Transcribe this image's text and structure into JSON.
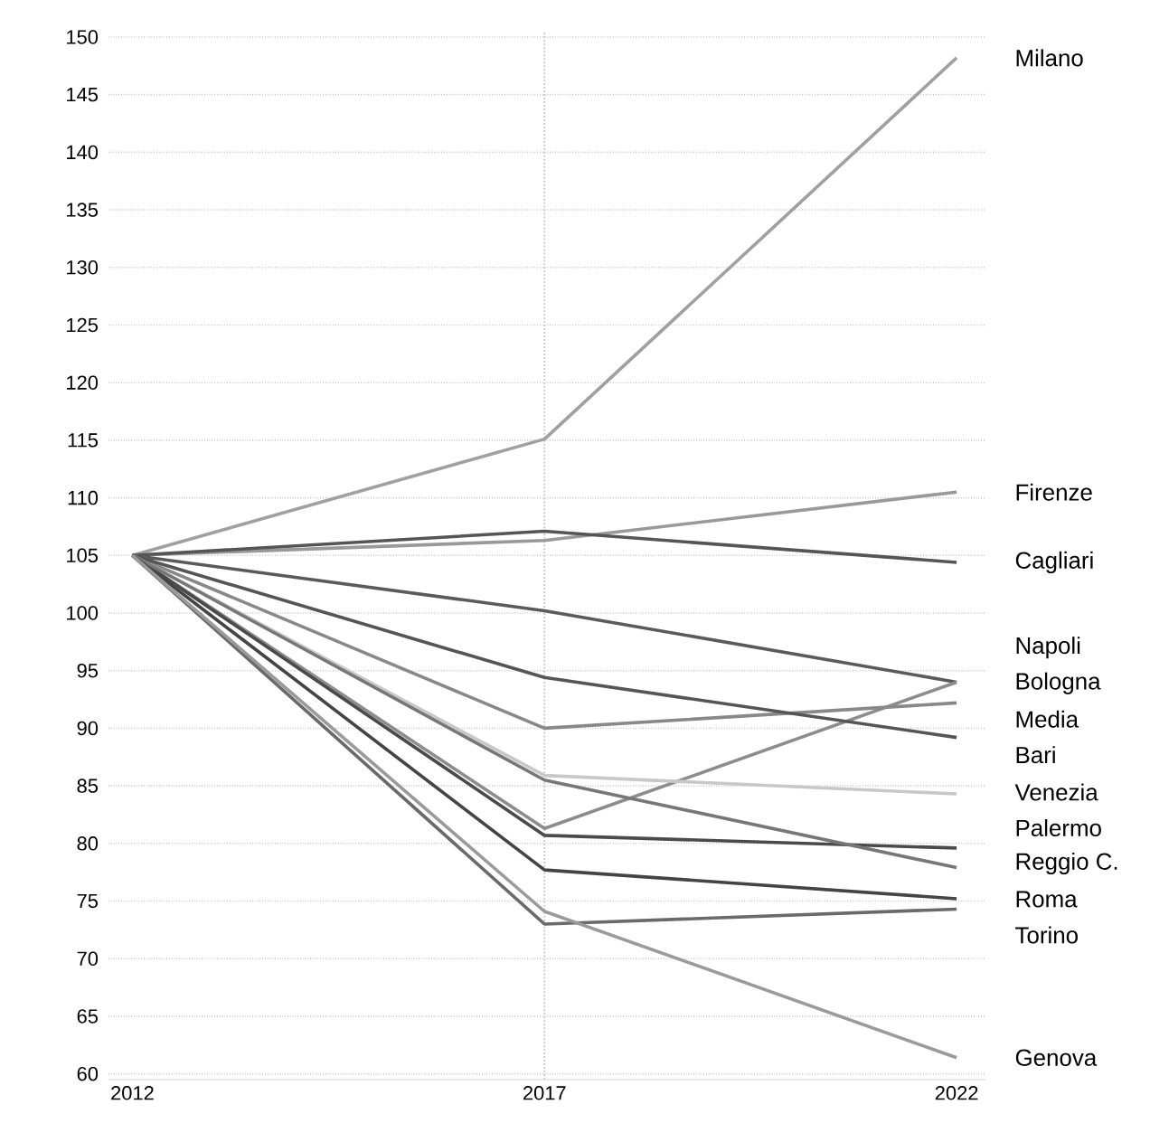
{
  "chart_data": {
    "type": "line",
    "x": [
      2012,
      2017,
      2022
    ],
    "xlim": [
      2011.71,
      2022.35
    ],
    "xticks": [
      2012,
      2017,
      2022
    ],
    "ylim": [
      59.5,
      150.5
    ],
    "yticks": [
      60,
      65,
      70,
      75,
      80,
      85,
      90,
      95,
      100,
      105,
      110,
      115,
      120,
      125,
      130,
      135,
      140,
      145,
      150
    ],
    "grid": "y",
    "legend": false,
    "line_style": "solid",
    "marker": "none",
    "ref_lines": [
      {
        "axis": "x",
        "value": 2017,
        "color": "#cccccc",
        "line_style": "dotted"
      }
    ],
    "series": [
      {
        "name": "Milano",
        "color": "#a0a0a0",
        "values": [
          105,
          115.1,
          148.2
        ]
      },
      {
        "name": "Firenze",
        "color": "#999999",
        "values": [
          105,
          106.3,
          110.5
        ]
      },
      {
        "name": "Cagliari",
        "color": "#555555",
        "values": [
          105,
          107.1,
          104.4
        ]
      },
      {
        "name": "Napoli",
        "color": "#5a5a5a",
        "values": [
          105,
          100.2,
          94.0
        ]
      },
      {
        "name": "Bologna",
        "color": "#8c8c8c",
        "values": [
          105,
          81.3,
          94.0
        ]
      },
      {
        "name": "Media",
        "color": "#888888",
        "values": [
          105,
          90.0,
          92.2
        ]
      },
      {
        "name": "Bari",
        "color": "#555555",
        "values": [
          105,
          94.4,
          89.2
        ]
      },
      {
        "name": "Venezia",
        "color": "#c8c8c8",
        "values": [
          105,
          85.9,
          84.3
        ]
      },
      {
        "name": "Palermo",
        "color": "#4a4a4a",
        "values": [
          105,
          80.7,
          79.6
        ]
      },
      {
        "name": "Reggio C.",
        "color": "#777777",
        "values": [
          105,
          85.5,
          77.9
        ]
      },
      {
        "name": "Roma",
        "color": "#444444",
        "values": [
          105,
          77.7,
          75.2
        ]
      },
      {
        "name": "Torino",
        "color": "#6a6a6a",
        "values": [
          105,
          73.0,
          74.3
        ]
      },
      {
        "name": "Genova",
        "color": "#9a9a9a",
        "values": [
          105,
          74.1,
          61.4
        ]
      }
    ]
  }
}
